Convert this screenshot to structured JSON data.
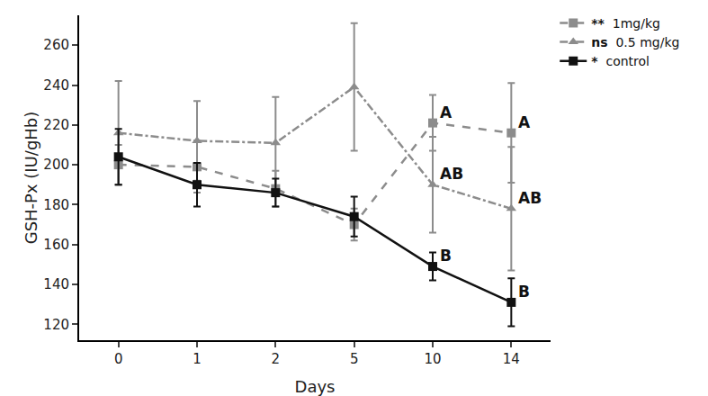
{
  "chart_data": {
    "type": "line",
    "x_label": "Days",
    "y_label": "GSH-Px (IU/gHb)",
    "categories": [
      "0",
      "1",
      "2",
      "5",
      "10",
      "14"
    ],
    "ylim": [
      112,
      275
    ],
    "yticks": [
      120,
      140,
      160,
      180,
      200,
      220,
      240,
      260
    ],
    "grid": false,
    "legend": "upper right",
    "series": [
      {
        "name": "1mg/kg",
        "significance": "**",
        "color": "#8c8c8c",
        "marker": "square",
        "line_style": "dash",
        "values": [
          200,
          199,
          188,
          170,
          221,
          216
        ],
        "errors": [
          10,
          13,
          9,
          8,
          14,
          25
        ],
        "letters": [
          null,
          null,
          null,
          null,
          "A",
          "A"
        ]
      },
      {
        "name": "0.5 mg/kg",
        "significance": "ns",
        "color": "#8c8c8c",
        "marker": "triangle-up",
        "line_style": "dashdot",
        "values": [
          216,
          212,
          211,
          239,
          190,
          178
        ],
        "errors": [
          26,
          20,
          23,
          32,
          24,
          31
        ],
        "letters": [
          null,
          null,
          null,
          null,
          "AB",
          "AB"
        ]
      },
      {
        "name": "control",
        "significance": "*",
        "color": "#111111",
        "marker": "square",
        "line_style": "solid",
        "values": [
          204,
          190,
          186,
          174,
          149,
          131
        ],
        "errors": [
          14,
          11,
          7,
          10,
          7,
          12
        ],
        "letters": [
          null,
          null,
          null,
          null,
          "B",
          "B"
        ]
      }
    ]
  }
}
